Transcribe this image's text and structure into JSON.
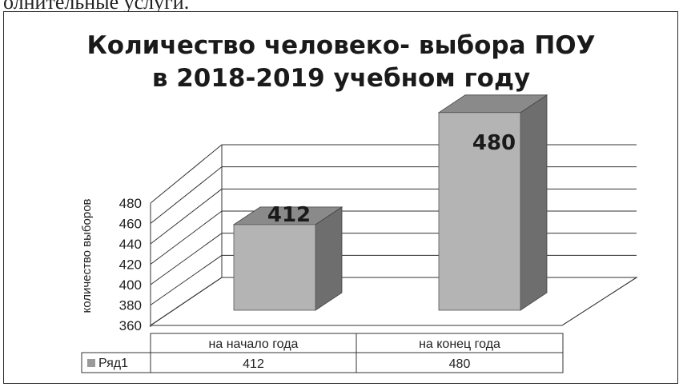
{
  "page_top_text": "олнительные услуги.",
  "chart_data": {
    "type": "bar",
    "title": [
      "Количество человеко- выбора ПОУ",
      "в 2018-2019 учебном году"
    ],
    "ylabel": "количество выборов",
    "ylim": [
      360,
      480
    ],
    "yticks": [
      "360",
      "380",
      "400",
      "420",
      "440",
      "460",
      "480"
    ],
    "categories": [
      "на начало года",
      "на конец года"
    ],
    "series": [
      {
        "name": "Ряд1",
        "values": [
          412,
          480
        ]
      }
    ],
    "data_labels": [
      "412",
      "480"
    ],
    "data_table": {
      "series_label": "Ряд1",
      "cells": [
        "412",
        "480"
      ]
    },
    "grid": true,
    "legend": "data-table",
    "colors": {
      "bar_front": "#b4b4b4",
      "bar_side": "#6e6e6e",
      "bar_top": "#8a8a8a",
      "legend_key": "#9a9a9a"
    }
  }
}
